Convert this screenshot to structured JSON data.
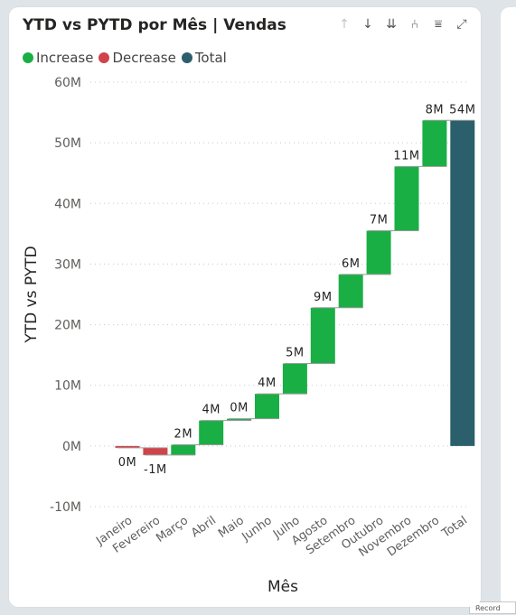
{
  "title": "YTD vs PYTD por Mês | Vendas",
  "toolbar": {
    "sort_up": "↑",
    "sort_down": "↓",
    "sort_both": "⇊",
    "drill": "⑃",
    "filter": "⩸",
    "focus": "⤢"
  },
  "colors": {
    "increase": "#1aaf44",
    "decrease": "#d0434a",
    "total": "#2b5f6c"
  },
  "legend": [
    {
      "label": "Increase",
      "color": "#1aaf44"
    },
    {
      "label": "Decrease",
      "color": "#d0434a"
    },
    {
      "label": "Total",
      "color": "#2b5f6c"
    }
  ],
  "chart_data": {
    "type": "bar",
    "subtype": "waterfall",
    "xlabel": "Mês",
    "ylabel": "YTD vs PYTD",
    "ylim": [
      -10,
      60
    ],
    "yticks": [
      {
        "value": 60,
        "label": "60M"
      },
      {
        "value": 50,
        "label": "50M"
      },
      {
        "value": 40,
        "label": "40M"
      },
      {
        "value": 30,
        "label": "30M"
      },
      {
        "value": 20,
        "label": "20M"
      },
      {
        "value": 10,
        "label": "10M"
      },
      {
        "value": 0,
        "label": "0M"
      },
      {
        "value": -10,
        "label": "-10M"
      }
    ],
    "categories": [
      "Janeiro",
      "Fevereiro",
      "Março",
      "Abril",
      "Maio",
      "Junho",
      "Julho",
      "Agosto",
      "Setembro",
      "Outubro",
      "Novembro",
      "Dezembro",
      "Total"
    ],
    "values": [
      -0.3,
      -1.2,
      1.7,
      4.0,
      0.3,
      4.1,
      5.0,
      9.2,
      5.5,
      7.2,
      10.6,
      7.6,
      53.7
    ],
    "kinds": [
      "decrease",
      "decrease",
      "increase",
      "increase",
      "increase",
      "increase",
      "increase",
      "increase",
      "increase",
      "increase",
      "increase",
      "increase",
      "total"
    ],
    "data_labels": [
      "0M",
      "-1M",
      "2M",
      "4M",
      "0M",
      "4M",
      "5M",
      "9M",
      "6M",
      "7M",
      "11M",
      "8M",
      "54M"
    ],
    "grid": true,
    "legend_position": "top-left"
  }
}
